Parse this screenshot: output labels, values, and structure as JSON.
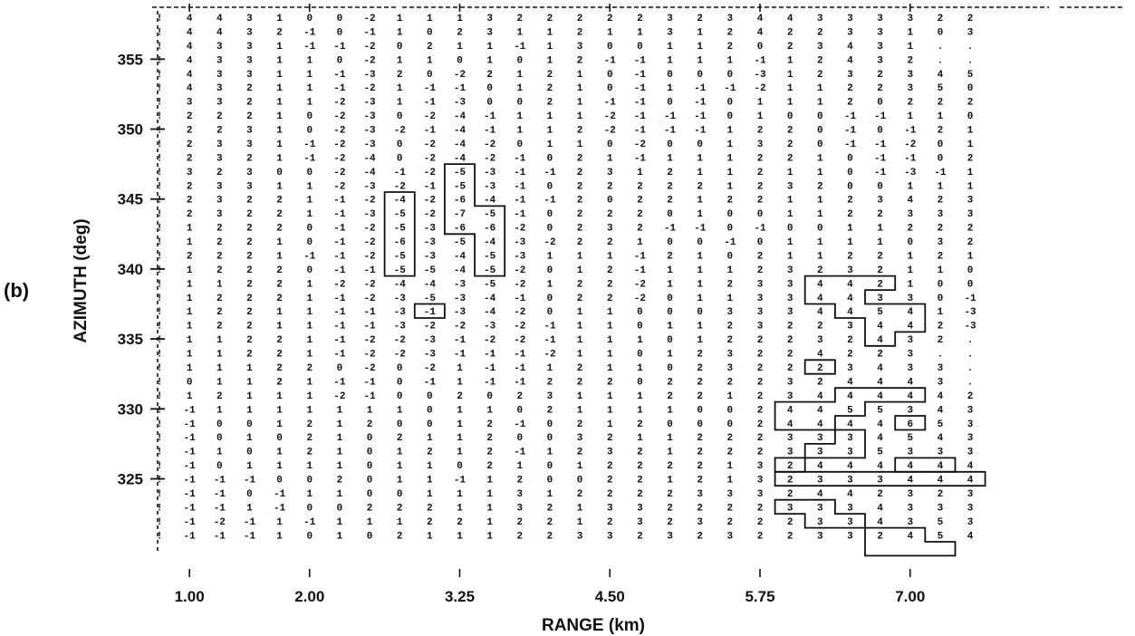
{
  "chart_data": {
    "type": "table",
    "panel_label": "(b)",
    "xlabel": "RANGE (km)",
    "ylabel": "AZIMUTH (deg)",
    "x_tick_labels": [
      "1.00",
      "2.00",
      "3.25",
      "4.50",
      "5.75",
      "7.00"
    ],
    "x_ticks": [
      1.0,
      2.0,
      3.25,
      4.5,
      5.75,
      7.0
    ],
    "y_tick_labels": [
      "355",
      "350",
      "345",
      "340",
      "335",
      "330",
      "325"
    ],
    "y_ticks": [
      355,
      350,
      345,
      340,
      335,
      330,
      325
    ],
    "range_km": [
      0.75,
      1.0,
      1.25,
      1.5,
      1.75,
      2.0,
      2.25,
      2.5,
      2.75,
      3.0,
      3.25,
      3.5,
      3.75,
      4.0,
      4.25,
      4.5,
      4.75,
      5.0,
      5.25,
      5.5,
      5.75,
      6.0,
      6.25,
      6.5,
      6.75,
      7.0,
      7.25,
      7.5
    ],
    "azimuth_deg": [
      358,
      357,
      356,
      355,
      354,
      353,
      352,
      351,
      350,
      349,
      348,
      347,
      346,
      345,
      344,
      343,
      342,
      341,
      340,
      339,
      338,
      337,
      336,
      335,
      334,
      333,
      332,
      331,
      330,
      329,
      328,
      327,
      326,
      325,
      324,
      323,
      322,
      321
    ],
    "rows": [
      [
        null,
        4,
        4,
        3,
        1,
        0,
        0,
        -2,
        1,
        1,
        1,
        3,
        2,
        2,
        2,
        2,
        2,
        3,
        2,
        3,
        4,
        4,
        3,
        3,
        3,
        3,
        2,
        2
      ],
      [
        null,
        4,
        4,
        3,
        2,
        -1,
        0,
        -1,
        1,
        0,
        2,
        3,
        1,
        1,
        2,
        1,
        1,
        3,
        1,
        2,
        4,
        2,
        2,
        3,
        3,
        1,
        0,
        3
      ],
      [
        null,
        4,
        3,
        3,
        1,
        -1,
        -1,
        -2,
        0,
        2,
        1,
        1,
        -1,
        1,
        3,
        0,
        0,
        1,
        1,
        2,
        0,
        2,
        3,
        4,
        3,
        1,
        null,
        null
      ],
      [
        null,
        4,
        3,
        3,
        1,
        1,
        0,
        -2,
        1,
        1,
        0,
        1,
        0,
        1,
        2,
        -1,
        -1,
        1,
        1,
        1,
        -1,
        1,
        2,
        4,
        3,
        2,
        null,
        null
      ],
      [
        null,
        4,
        3,
        3,
        1,
        1,
        -1,
        -3,
        2,
        0,
        -2,
        2,
        1,
        2,
        1,
        0,
        -1,
        0,
        0,
        0,
        -3,
        1,
        2,
        3,
        2,
        3,
        4,
        5
      ],
      [
        null,
        4,
        3,
        2,
        1,
        1,
        -1,
        -2,
        1,
        -1,
        -1,
        0,
        1,
        2,
        1,
        0,
        -1,
        1,
        -1,
        -1,
        -2,
        1,
        1,
        2,
        2,
        3,
        5,
        0
      ],
      [
        null,
        3,
        3,
        2,
        1,
        1,
        -2,
        -3,
        1,
        -1,
        -3,
        0,
        0,
        2,
        1,
        -1,
        -1,
        0,
        -1,
        0,
        1,
        1,
        1,
        2,
        0,
        2,
        2,
        2
      ],
      [
        null,
        2,
        2,
        2,
        1,
        0,
        -2,
        -3,
        0,
        -2,
        -4,
        -1,
        1,
        1,
        1,
        -2,
        -1,
        -1,
        -1,
        0,
        1,
        0,
        0,
        -1,
        -1,
        1,
        1,
        0
      ],
      [
        null,
        2,
        2,
        3,
        1,
        0,
        -2,
        -3,
        -2,
        -1,
        -4,
        -1,
        1,
        1,
        2,
        -2,
        -1,
        -1,
        -1,
        1,
        2,
        2,
        0,
        -1,
        0,
        -1,
        2,
        1
      ],
      [
        null,
        2,
        3,
        3,
        1,
        -1,
        -2,
        -3,
        0,
        -2,
        -4,
        -2,
        0,
        1,
        1,
        0,
        -2,
        0,
        0,
        1,
        3,
        2,
        0,
        -1,
        -1,
        -2,
        0,
        1
      ],
      [
        null,
        2,
        3,
        2,
        1,
        -1,
        -2,
        -4,
        0,
        -2,
        -4,
        -2,
        -1,
        0,
        2,
        1,
        -1,
        1,
        1,
        1,
        2,
        2,
        1,
        0,
        -1,
        -1,
        0,
        2
      ],
      [
        null,
        3,
        2,
        3,
        0,
        0,
        -2,
        -4,
        -1,
        -2,
        -5,
        -3,
        -1,
        -1,
        2,
        3,
        1,
        2,
        1,
        1,
        2,
        1,
        1,
        0,
        -1,
        -3,
        -1,
        1
      ],
      [
        null,
        2,
        3,
        3,
        1,
        1,
        -2,
        -3,
        -2,
        -1,
        -5,
        -3,
        -1,
        0,
        2,
        2,
        2,
        2,
        2,
        1,
        2,
        3,
        2,
        0,
        0,
        1,
        1,
        1
      ],
      [
        null,
        2,
        3,
        2,
        2,
        1,
        -1,
        -2,
        -4,
        -2,
        -6,
        -4,
        -1,
        -1,
        2,
        0,
        2,
        2,
        1,
        2,
        2,
        1,
        1,
        2,
        3,
        4,
        2,
        3
      ],
      [
        null,
        2,
        3,
        2,
        2,
        1,
        -1,
        -3,
        -5,
        -2,
        -7,
        -5,
        -1,
        0,
        2,
        2,
        2,
        0,
        1,
        0,
        0,
        1,
        1,
        2,
        2,
        3,
        3,
        3
      ],
      [
        null,
        1,
        2,
        2,
        2,
        0,
        -1,
        -2,
        -5,
        -3,
        -6,
        -6,
        -2,
        0,
        2,
        3,
        2,
        -1,
        -1,
        0,
        -1,
        0,
        0,
        1,
        1,
        2,
        2,
        2
      ],
      [
        null,
        1,
        2,
        2,
        1,
        0,
        -1,
        -2,
        -6,
        -3,
        -5,
        -4,
        -3,
        -2,
        2,
        2,
        1,
        0,
        0,
        -1,
        0,
        1,
        1,
        1,
        1,
        0,
        3,
        2
      ],
      [
        null,
        2,
        2,
        2,
        1,
        -1,
        -1,
        -2,
        -5,
        -3,
        -4,
        -5,
        -3,
        1,
        1,
        1,
        -1,
        2,
        1,
        0,
        2,
        1,
        1,
        2,
        2,
        1,
        2,
        1
      ],
      [
        null,
        1,
        2,
        2,
        2,
        0,
        -1,
        -1,
        -5,
        -5,
        -4,
        -5,
        -2,
        0,
        1,
        2,
        -1,
        1,
        1,
        1,
        2,
        3,
        2,
        3,
        2,
        1,
        1,
        0
      ],
      [
        null,
        1,
        1,
        2,
        2,
        1,
        -2,
        -2,
        -4,
        -4,
        -3,
        -5,
        -2,
        1,
        2,
        2,
        -2,
        1,
        1,
        2,
        3,
        3,
        4,
        4,
        2,
        1,
        0,
        0
      ],
      [
        null,
        1,
        2,
        2,
        2,
        1,
        -1,
        -2,
        -3,
        -5,
        -3,
        -4,
        -1,
        0,
        2,
        2,
        -2,
        0,
        1,
        1,
        3,
        3,
        4,
        4,
        3,
        3,
        0,
        -1
      ],
      [
        null,
        1,
        2,
        2,
        1,
        1,
        -1,
        -1,
        -3,
        -1,
        -3,
        -4,
        -2,
        0,
        1,
        1,
        0,
        0,
        0,
        3,
        3,
        3,
        4,
        4,
        5,
        4,
        1,
        -3
      ],
      [
        null,
        1,
        2,
        2,
        1,
        1,
        -1,
        -1,
        -3,
        -2,
        -2,
        -3,
        -2,
        -1,
        1,
        1,
        0,
        1,
        1,
        2,
        3,
        2,
        2,
        3,
        4,
        4,
        2,
        -3
      ],
      [
        null,
        1,
        1,
        2,
        2,
        1,
        -1,
        -2,
        -2,
        -3,
        -1,
        -2,
        -2,
        -1,
        1,
        1,
        1,
        0,
        1,
        2,
        2,
        2,
        3,
        2,
        4,
        3,
        2,
        null
      ],
      [
        null,
        1,
        1,
        2,
        2,
        1,
        -1,
        -2,
        -2,
        -3,
        -1,
        -1,
        -1,
        -2,
        1,
        1,
        0,
        1,
        2,
        3,
        2,
        2,
        4,
        2,
        2,
        3,
        null,
        null
      ],
      [
        null,
        1,
        1,
        1,
        2,
        2,
        0,
        -2,
        0,
        -2,
        1,
        -1,
        -1,
        1,
        2,
        1,
        1,
        0,
        2,
        3,
        2,
        2,
        2,
        3,
        4,
        3,
        3,
        null
      ],
      [
        null,
        0,
        1,
        1,
        2,
        1,
        -1,
        -1,
        0,
        -1,
        1,
        -1,
        -1,
        2,
        2,
        2,
        0,
        2,
        2,
        2,
        2,
        3,
        2,
        4,
        4,
        4,
        3,
        null
      ],
      [
        null,
        1,
        2,
        1,
        1,
        1,
        -2,
        -1,
        0,
        0,
        2,
        0,
        2,
        3,
        1,
        1,
        1,
        2,
        2,
        1,
        2,
        3,
        4,
        4,
        4,
        4,
        4,
        2
      ],
      [
        null,
        -1,
        1,
        1,
        1,
        1,
        1,
        1,
        1,
        0,
        1,
        1,
        0,
        2,
        1,
        1,
        1,
        1,
        0,
        0,
        2,
        4,
        4,
        5,
        5,
        3,
        4,
        3
      ],
      [
        null,
        -1,
        0,
        0,
        1,
        2,
        1,
        2,
        0,
        0,
        1,
        2,
        -1,
        0,
        2,
        1,
        2,
        0,
        0,
        0,
        2,
        4,
        4,
        4,
        4,
        6,
        5,
        3
      ],
      [
        null,
        -1,
        0,
        1,
        0,
        2,
        1,
        0,
        2,
        1,
        1,
        2,
        0,
        0,
        3,
        2,
        1,
        1,
        2,
        2,
        2,
        3,
        3,
        3,
        4,
        5,
        4,
        3
      ],
      [
        null,
        -1,
        1,
        0,
        1,
        2,
        1,
        0,
        1,
        2,
        1,
        2,
        -1,
        1,
        2,
        3,
        2,
        1,
        2,
        2,
        2,
        3,
        3,
        3,
        5,
        3,
        3,
        3
      ],
      [
        null,
        -1,
        0,
        1,
        1,
        1,
        1,
        0,
        1,
        1,
        0,
        2,
        1,
        0,
        1,
        2,
        2,
        2,
        2,
        1,
        3,
        2,
        4,
        4,
        4,
        4,
        4,
        4
      ],
      [
        null,
        -1,
        -1,
        -1,
        0,
        0,
        2,
        0,
        1,
        1,
        -1,
        1,
        2,
        0,
        0,
        2,
        2,
        1,
        2,
        1,
        3,
        2,
        3,
        3,
        3,
        4,
        4,
        4
      ],
      [
        null,
        -1,
        -1,
        0,
        -1,
        1,
        1,
        0,
        0,
        1,
        1,
        1,
        3,
        1,
        2,
        2,
        2,
        2,
        3,
        3,
        3,
        2,
        4,
        4,
        2,
        3,
        2,
        3
      ],
      [
        null,
        -1,
        -1,
        1,
        -1,
        0,
        0,
        2,
        2,
        2,
        1,
        1,
        3,
        2,
        1,
        3,
        3,
        2,
        2,
        2,
        2,
        3,
        3,
        3,
        4,
        3,
        3,
        3
      ],
      [
        null,
        -1,
        -2,
        -1,
        1,
        -1,
        1,
        1,
        1,
        2,
        2,
        1,
        2,
        2,
        1,
        2,
        3,
        2,
        3,
        2,
        2,
        2,
        3,
        3,
        4,
        3,
        5,
        3
      ],
      [
        null,
        -1,
        -1,
        -1,
        1,
        0,
        1,
        0,
        2,
        1,
        1,
        1,
        2,
        2,
        3,
        3,
        2,
        3,
        2,
        3,
        2,
        2,
        3,
        3,
        2,
        4,
        5,
        4
      ]
    ]
  }
}
